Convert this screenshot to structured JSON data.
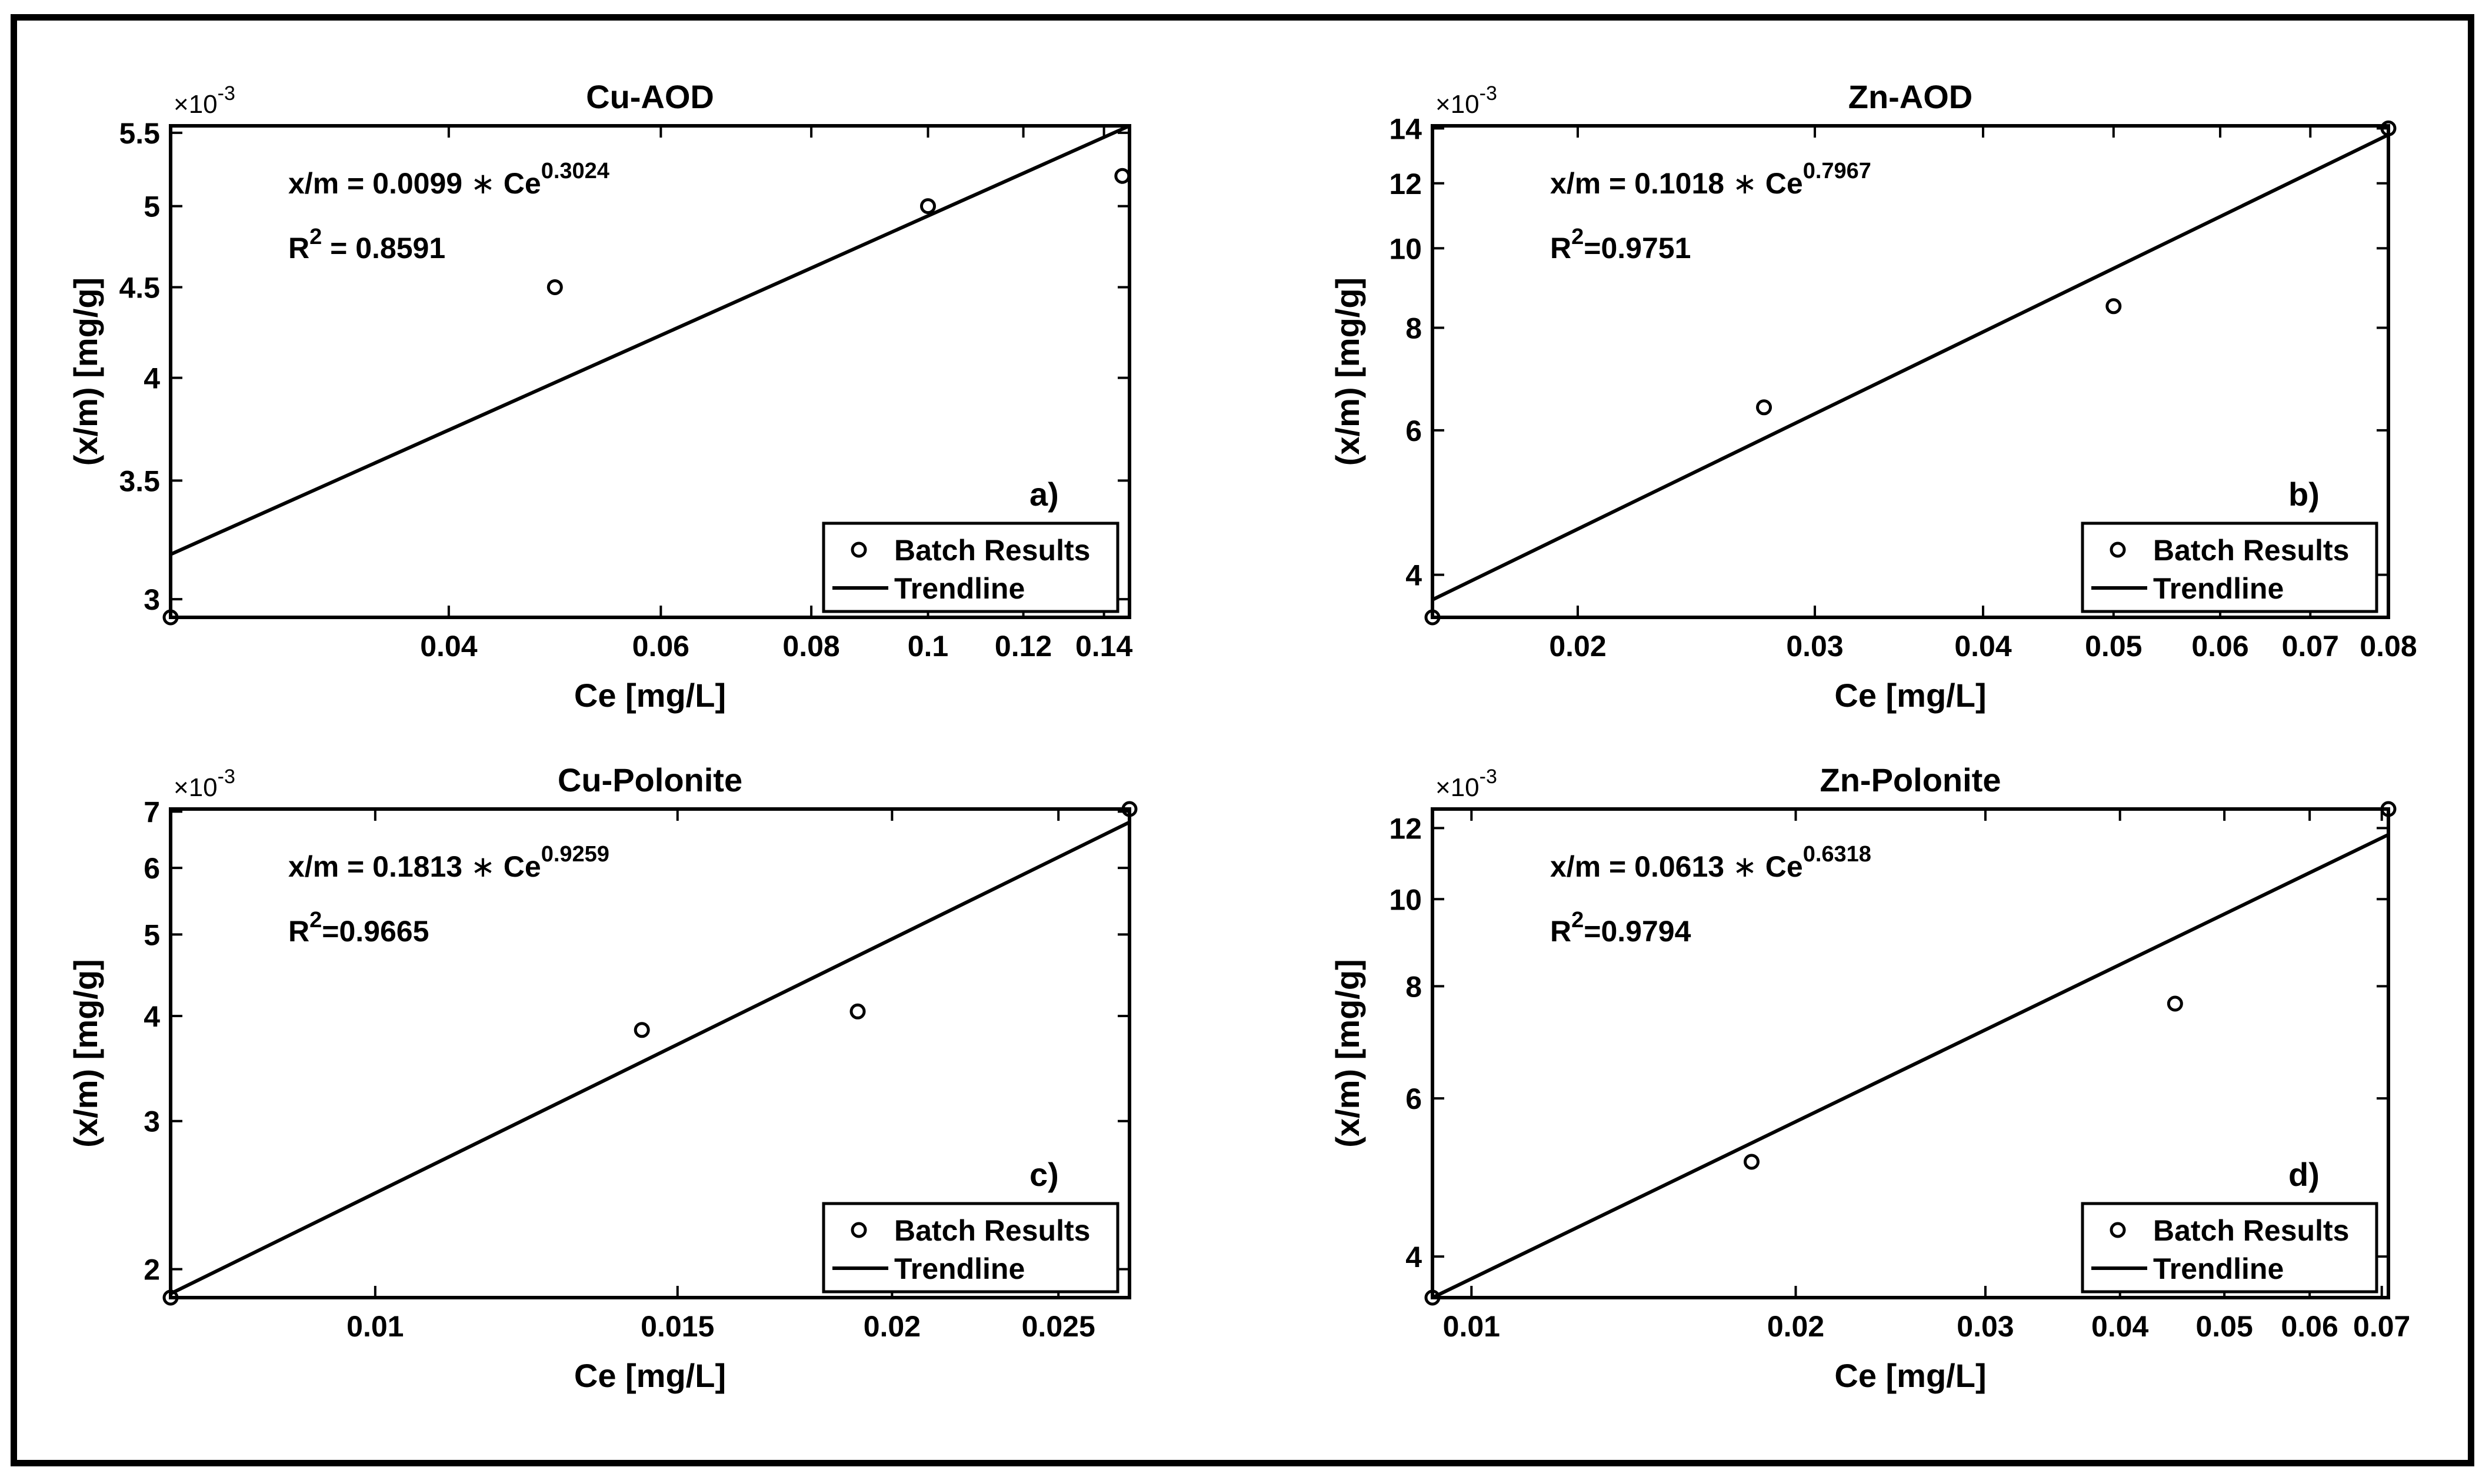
{
  "chart_data": [
    {
      "type": "scatter",
      "title": "Cu-AOD",
      "xlabel": "Ce [mg/L]",
      "ylabel": "(x/m) [mg/g]",
      "xscale": "log",
      "yscale": "log",
      "xlim": [
        0.0235,
        0.147
      ],
      "ylim": [
        2.93,
        5.55
      ],
      "y_multiplier": "×10",
      "y_multiplier_exp": "-3",
      "xticks": [
        0.04,
        0.06,
        0.08,
        0.1,
        0.12,
        0.14
      ],
      "xtick_labels": [
        "0.04",
        "0.06",
        "0.08",
        "0.1",
        "0.12",
        "0.14"
      ],
      "yticks": [
        3,
        3.5,
        4,
        4.5,
        5,
        5.5
      ],
      "ytick_labels": [
        "3",
        "3.5",
        "4",
        "4.5",
        "5",
        "5.5"
      ],
      "series": [
        {
          "name": "Batch Results",
          "kind": "scatter",
          "points": [
            [
              0.0235,
              2.93
            ],
            [
              0.049,
              4.5
            ],
            [
              0.1,
              5.0
            ],
            [
              0.145,
              5.2
            ]
          ]
        },
        {
          "name": "Trendline",
          "kind": "line",
          "points": [
            [
              0.0235,
              3.18
            ],
            [
              0.147,
              5.55
            ]
          ]
        }
      ],
      "equation": {
        "lhs": "x/m = 0.0099",
        "op": "∗",
        "base": "Ce",
        "exp": "0.3024"
      },
      "r2": {
        "label": "R",
        "sup": "2",
        "value": " = 0.8591"
      },
      "panel_label": "a)",
      "legend_position": "bottom-right"
    },
    {
      "type": "scatter",
      "title": "Zn-AOD",
      "xlabel": "Ce [mg/L]",
      "ylabel": "(x/m) [mg/g]",
      "xscale": "log",
      "yscale": "log",
      "xlim": [
        0.0156,
        0.08
      ],
      "ylim": [
        3.55,
        14.1
      ],
      "y_multiplier": "×10",
      "y_multiplier_exp": "-3",
      "xticks": [
        0.02,
        0.03,
        0.04,
        0.05,
        0.06,
        0.07,
        0.08
      ],
      "xtick_labels": [
        "0.02",
        "0.03",
        "0.04",
        "0.05",
        "0.06",
        "0.07",
        "0.08"
      ],
      "yticks": [
        4,
        6,
        8,
        10,
        12,
        14
      ],
      "ytick_labels": [
        "4",
        "6",
        "8",
        "10",
        "12",
        "14"
      ],
      "series": [
        {
          "name": "Batch Results",
          "kind": "scatter",
          "points": [
            [
              0.0156,
              3.55
            ],
            [
              0.0275,
              6.4
            ],
            [
              0.05,
              8.5
            ],
            [
              0.08,
              14.0
            ]
          ]
        },
        {
          "name": "Trendline",
          "kind": "line",
          "points": [
            [
              0.0156,
              3.73
            ],
            [
              0.08,
              13.75
            ]
          ]
        }
      ],
      "equation": {
        "lhs": "x/m = 0.1018",
        "op": "∗",
        "base": "Ce",
        "exp": "0.7967"
      },
      "r2": {
        "label": "R",
        "sup": "2",
        "value": "=0.9751"
      },
      "panel_label": "b)",
      "legend_position": "bottom-right"
    },
    {
      "type": "scatter",
      "title": "Cu-Polonite",
      "xlabel": "Ce [mg/L]",
      "ylabel": "(x/m) [mg/g]",
      "xscale": "log",
      "yscale": "log",
      "xlim": [
        0.0076,
        0.0275
      ],
      "ylim": [
        1.85,
        7.05
      ],
      "y_multiplier": "×10",
      "y_multiplier_exp": "-3",
      "xticks": [
        0.01,
        0.015,
        0.02,
        0.025
      ],
      "xtick_labels": [
        "0.01",
        "0.015",
        "0.02",
        "0.025"
      ],
      "yticks": [
        2,
        3,
        4,
        5,
        6,
        7
      ],
      "ytick_labels": [
        "2",
        "3",
        "4",
        "5",
        "6",
        "7"
      ],
      "series": [
        {
          "name": "Batch Results",
          "kind": "scatter",
          "points": [
            [
              0.0076,
              1.85
            ],
            [
              0.0143,
              3.85
            ],
            [
              0.0191,
              4.05
            ],
            [
              0.0275,
              7.05
            ]
          ]
        },
        {
          "name": "Trendline",
          "kind": "line",
          "points": [
            [
              0.0076,
              1.87
            ],
            [
              0.0275,
              6.8
            ]
          ]
        }
      ],
      "equation": {
        "lhs": "x/m = 0.1813",
        "op": "∗",
        "base": "Ce",
        "exp": "0.9259"
      },
      "r2": {
        "label": "R",
        "sup": "2",
        "value": "=0.9665"
      },
      "panel_label": "c)",
      "legend_position": "bottom-right"
    },
    {
      "type": "scatter",
      "title": "Zn-Polonite",
      "xlabel": "Ce [mg/L]",
      "ylabel": "(x/m) [mg/g]",
      "xscale": "log",
      "yscale": "log",
      "xlim": [
        0.0092,
        0.071
      ],
      "ylim": [
        3.6,
        12.6
      ],
      "y_multiplier": "×10",
      "y_multiplier_exp": "-3",
      "xticks": [
        0.01,
        0.02,
        0.03,
        0.04,
        0.05,
        0.06,
        0.07
      ],
      "xtick_labels": [
        "0.01",
        "0.02",
        "0.03",
        "0.04",
        "0.05",
        "0.06",
        "0.07"
      ],
      "yticks": [
        4,
        6,
        8,
        10,
        12
      ],
      "ytick_labels": [
        "4",
        "6",
        "8",
        "10",
        "12"
      ],
      "series": [
        {
          "name": "Batch Results",
          "kind": "scatter",
          "points": [
            [
              0.0092,
              3.6
            ],
            [
              0.0182,
              5.1
            ],
            [
              0.045,
              7.65
            ],
            [
              0.071,
              12.6
            ]
          ]
        },
        {
          "name": "Trendline",
          "kind": "line",
          "points": [
            [
              0.0092,
              3.6
            ],
            [
              0.071,
              11.8
            ]
          ]
        }
      ],
      "equation": {
        "lhs": "x/m = 0.0613",
        "op": "∗",
        "base": "Ce",
        "exp": "0.6318"
      },
      "r2": {
        "label": "R",
        "sup": "2",
        "value": "=0.9794"
      },
      "panel_label": "d)",
      "legend_position": "bottom-right"
    }
  ]
}
